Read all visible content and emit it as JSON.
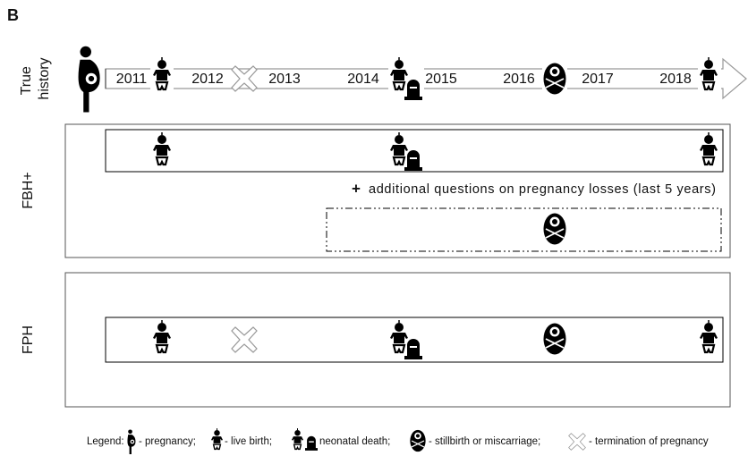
{
  "panel_label": "B",
  "true_history": {
    "label_lines": [
      "True",
      "history"
    ],
    "years": [
      "2011",
      "2012",
      "2013",
      "2014",
      "2015",
      "2016",
      "2017",
      "2018"
    ]
  },
  "fbh": {
    "label": "FBH+",
    "note_prefix": "+",
    "note": "additional questions on pregnancy losses (last 5 years)"
  },
  "fph": {
    "label": "FPH"
  },
  "legend": {
    "title": "Legend:",
    "items": [
      "- pregnancy;",
      "- live birth;",
      "neonatal death;",
      "- stillbirth or miscarriage;",
      "- termination of pregnancy"
    ]
  }
}
